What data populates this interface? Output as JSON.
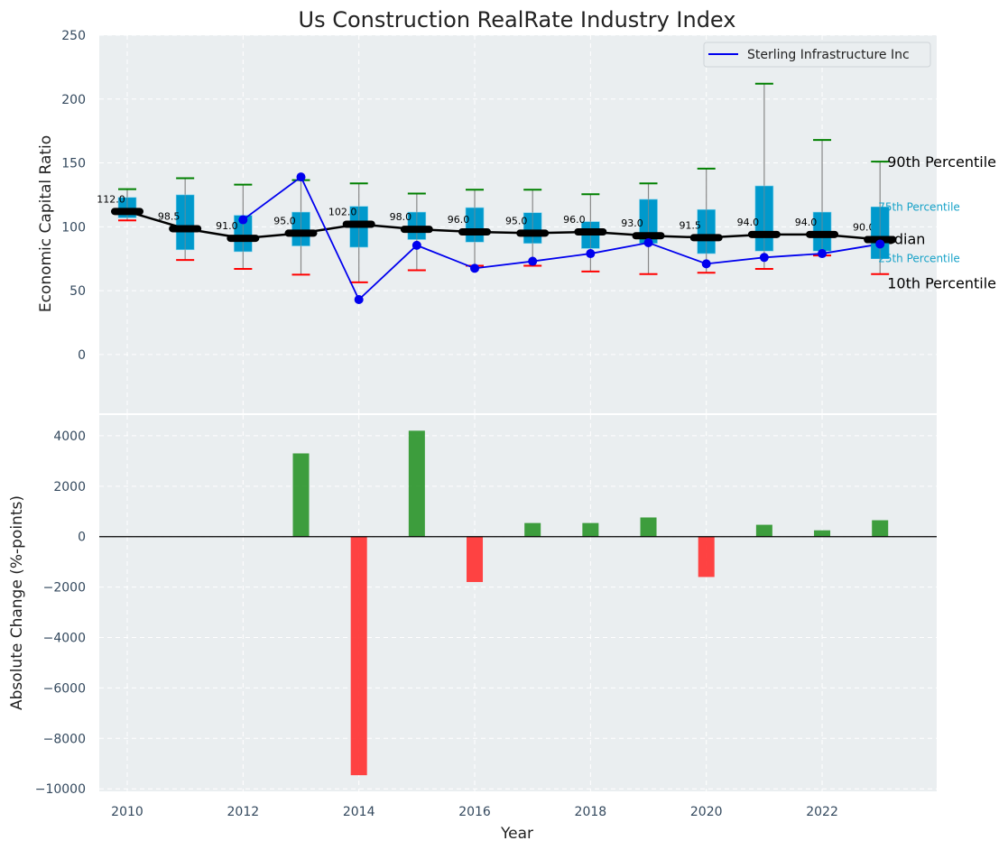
{
  "chart_data": [
    {
      "type": "box",
      "title": "Us Construction RealRate Industry Index",
      "xlabel": "",
      "ylabel": "Economic Capital Ratio",
      "ylim": [
        -46,
        250
      ],
      "yticks": [
        0,
        50,
        100,
        150,
        200,
        250
      ],
      "grid": true,
      "legend": {
        "placement": "top-right",
        "entries": [
          {
            "label": "Sterling Infrastructure Inc",
            "color": "#0000ee"
          }
        ]
      },
      "x": [
        2010,
        2011,
        2012,
        2013,
        2014,
        2015,
        2016,
        2017,
        2018,
        2019,
        2020,
        2021,
        2022,
        2023
      ],
      "p10": [
        105,
        74,
        67,
        62.5,
        56.5,
        66,
        69.5,
        69.5,
        65,
        63,
        64,
        67,
        77.5,
        63
      ],
      "p25": [
        107,
        82,
        80.5,
        85,
        84,
        90,
        88,
        87,
        83,
        87,
        79,
        81,
        81,
        75
      ],
      "median": [
        112.0,
        98.5,
        91.0,
        95.0,
        102.0,
        98.0,
        96.0,
        95.0,
        96.0,
        93.0,
        91.5,
        94.0,
        94.0,
        90.0
      ],
      "median_labels": [
        "112.0",
        "98.5",
        "91.0",
        "95.0",
        "102.0",
        "98.0",
        "96.0",
        "95.0",
        "96.0",
        "93.0",
        "91.5",
        "94.0",
        "94.0",
        "90.0"
      ],
      "p75": [
        123,
        125,
        109,
        111.5,
        116,
        111.5,
        115,
        111,
        104,
        121.5,
        113.5,
        132,
        111.5,
        115.5
      ],
      "p90": [
        129.5,
        138,
        133,
        136.5,
        134,
        126,
        129,
        129,
        125.5,
        134,
        145.5,
        212,
        168,
        151
      ],
      "series": [
        {
          "name": "Sterling Infrastructure Inc",
          "color": "#0000ee",
          "values": [
            null,
            null,
            105.5,
            139,
            43,
            85.5,
            67.5,
            73,
            79,
            87.5,
            71,
            76,
            79,
            86.5
          ]
        }
      ],
      "annotations": [
        {
          "text": "90th Percentile",
          "color": "#000000"
        },
        {
          "text": "75th Percentile",
          "color": "#17a2c8"
        },
        {
          "text": "Median",
          "color": "#000000"
        },
        {
          "text": "25th Percentile",
          "color": "#17a2c8"
        },
        {
          "text": "10th Percentile",
          "color": "#000000"
        }
      ],
      "colors": {
        "box": "#0099cc",
        "median": "#000000",
        "p90_cap": "#008000",
        "p10_cap": "#ff0000",
        "whisker": "#888888"
      }
    },
    {
      "type": "bar",
      "title": "",
      "xlabel": "Year",
      "ylabel": "Absolute Change (%-points)",
      "ylim": [
        -10100,
        4820
      ],
      "yticks": [
        -10000,
        -8000,
        -6000,
        -4000,
        -2000,
        0,
        2000,
        4000
      ],
      "xticks": [
        2010,
        2012,
        2014,
        2016,
        2018,
        2020,
        2022
      ],
      "grid": true,
      "categories": [
        2010,
        2011,
        2012,
        2013,
        2014,
        2015,
        2016,
        2017,
        2018,
        2019,
        2020,
        2021,
        2022,
        2023
      ],
      "values": [
        null,
        null,
        null,
        3300,
        -9460,
        4200,
        -1800,
        540,
        540,
        760,
        -1600,
        470,
        250,
        650
      ],
      "colors": {
        "positive": "#2e962e",
        "negative": "#ff3333"
      }
    }
  ]
}
